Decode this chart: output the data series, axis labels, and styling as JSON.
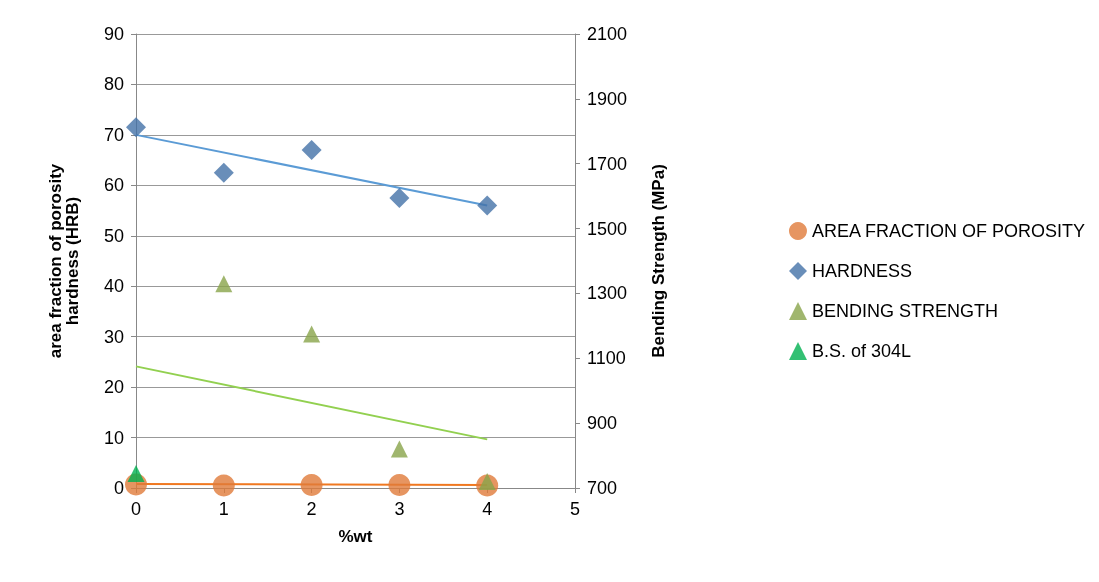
{
  "chart_data": {
    "type": "scatter",
    "xlabel": "%wt",
    "ylabel": "area fraction of porosity\nhardness (HRB)",
    "y2label": "Bending Strength (MPa)",
    "xlim": [
      0,
      5
    ],
    "xticks": [
      0,
      1,
      2,
      3,
      4,
      5
    ],
    "ylim": [
      0,
      90
    ],
    "yticks": [
      0,
      10,
      20,
      30,
      40,
      50,
      60,
      70,
      80,
      90
    ],
    "y2lim": [
      700,
      2100
    ],
    "y2ticks": [
      700,
      900,
      1100,
      1300,
      1500,
      1700,
      1900,
      2100
    ],
    "grid": "y",
    "legend": "right",
    "series": [
      {
        "name": "AREA FRACTION OF POROSITY",
        "color": "#e07b39",
        "marker": "circle",
        "x": [
          0,
          1,
          2,
          3,
          4
        ],
        "values": [
          0.7,
          0.5,
          0.6,
          0.6,
          0.5
        ]
      },
      {
        "name": "HARDNESS",
        "color": "#4472a8",
        "marker": "diamond",
        "x": [
          0,
          1,
          2,
          3,
          4
        ],
        "values": [
          71.5,
          62.5,
          67,
          57.5,
          56
        ]
      },
      {
        "name": "BENDING STRENGTH",
        "color": "#88a44a",
        "marker": "triangle",
        "axis": "y2",
        "x": [
          1,
          2,
          3,
          4
        ],
        "values": [
          1330,
          1175,
          820,
          720
        ]
      },
      {
        "name": "B.S. of 304L",
        "color": "#00b050",
        "marker": "triangle",
        "axis": "y2",
        "x": [
          0
        ],
        "values": [
          745
        ]
      },
      {
        "type": "line",
        "color": "#f07820",
        "marker": "none",
        "x": [
          0,
          4
        ],
        "values": [
          0.8,
          0.6
        ]
      },
      {
        "type": "line",
        "color": "#5b9bd5",
        "marker": "none",
        "x": [
          0,
          4
        ],
        "values": [
          70,
          56
        ]
      },
      {
        "type": "line",
        "color": "#92d050",
        "marker": "none",
        "axis": "y2",
        "x": [
          0,
          4
        ],
        "values": [
          1075,
          850
        ]
      }
    ]
  }
}
